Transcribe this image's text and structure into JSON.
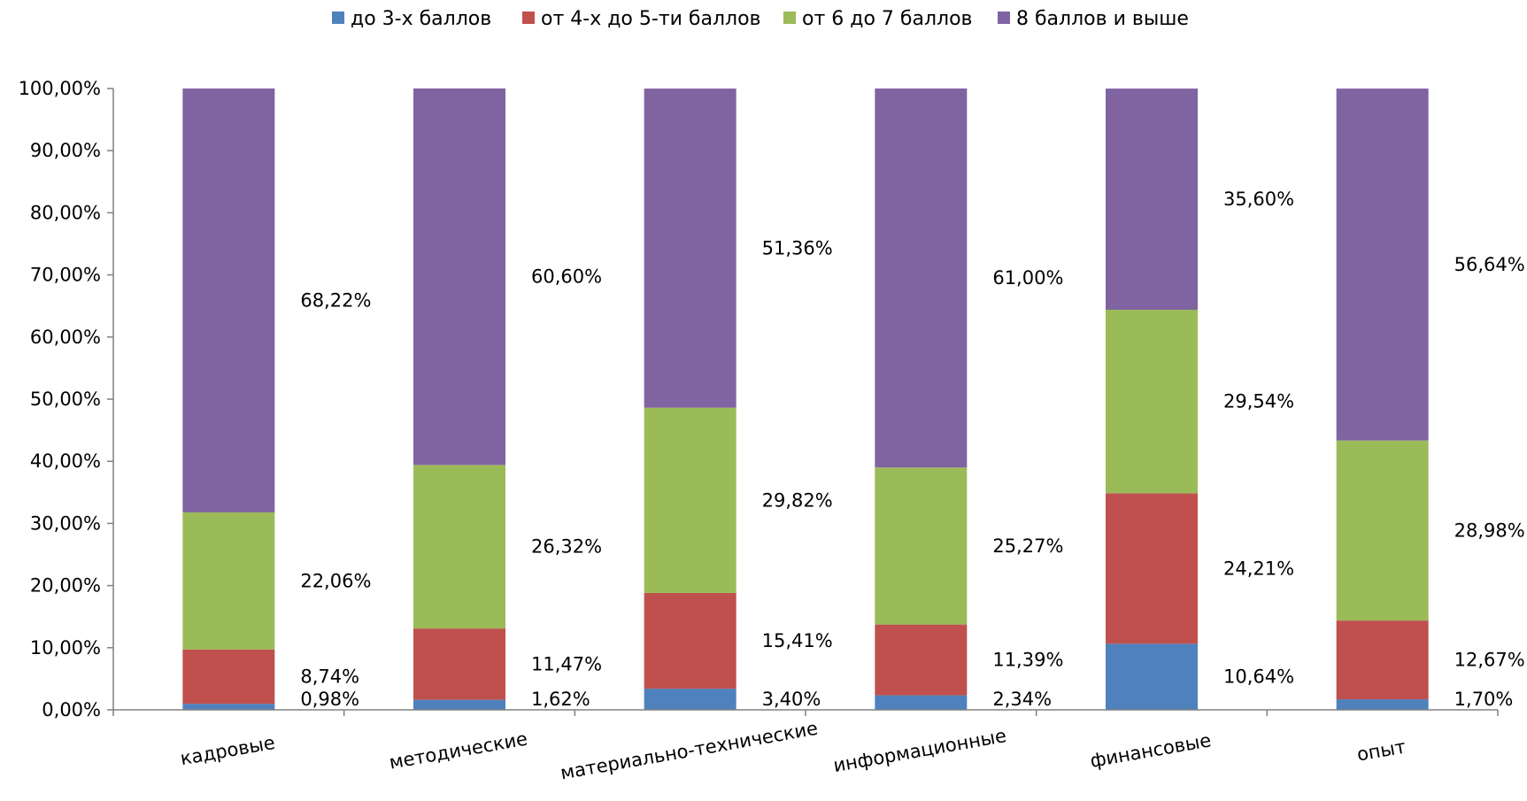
{
  "chart_data": {
    "type": "bar",
    "stacked": true,
    "percent": true,
    "categories": [
      "кадровые",
      "методические",
      "материально-технические",
      "информационные",
      "финансовые",
      "опыт"
    ],
    "series": [
      {
        "name": "до 3-х баллов",
        "color": "#4F81BD",
        "values": [
          0.98,
          1.62,
          3.4,
          2.34,
          10.64,
          1.7
        ],
        "labels": [
          "0,98%",
          "1,62%",
          "3,40%",
          "2,34%",
          "10,64%",
          "1,70%"
        ]
      },
      {
        "name": "от 4-х до 5-ти баллов",
        "color": "#C0504D",
        "values": [
          8.74,
          11.47,
          15.41,
          11.39,
          24.21,
          12.67
        ],
        "labels": [
          "8,74%",
          "11,47%",
          "15,41%",
          "11,39%",
          "24,21%",
          "12,67%"
        ]
      },
      {
        "name": "от 6 до 7 баллов",
        "color": "#9BBB59",
        "values": [
          22.06,
          26.32,
          29.82,
          25.27,
          29.54,
          28.98
        ],
        "labels": [
          "22,06%",
          "26,32%",
          "29,82%",
          "25,27%",
          "29,54%",
          "28,98%"
        ]
      },
      {
        "name": "8 баллов и выше",
        "color": "#8064A2",
        "values": [
          68.22,
          60.6,
          51.36,
          61.0,
          35.6,
          56.64
        ],
        "labels": [
          "68,22%",
          "60,60%",
          "51,36%",
          "61,00%",
          "35,60%",
          "56,64%"
        ]
      }
    ],
    "ylim": [
      0,
      100
    ],
    "yticks": [
      "0,00%",
      "10,00%",
      "20,00%",
      "30,00%",
      "40,00%",
      "50,00%",
      "60,00%",
      "70,00%",
      "80,00%",
      "90,00%",
      "100,00%"
    ],
    "legend_position": "top",
    "grid": false
  }
}
